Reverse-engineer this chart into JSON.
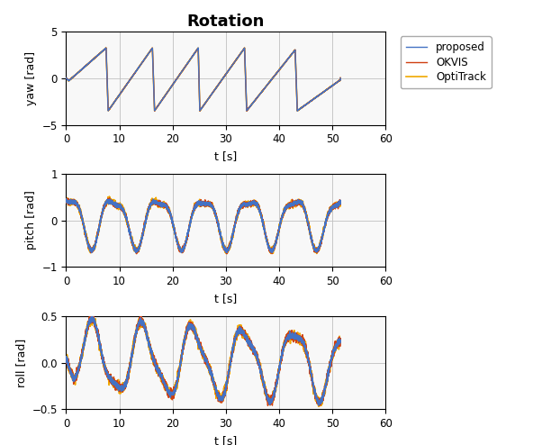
{
  "title": "Rotation",
  "title_fontsize": 13,
  "title_fontweight": "bold",
  "legend_labels": [
    "proposed",
    "OKVIS",
    "OptiTrack"
  ],
  "colors": {
    "proposed": "#4472c4",
    "okvis": "#d04010",
    "optitrack": "#f0a800"
  },
  "line_widths": {
    "proposed": 1.0,
    "okvis": 1.0,
    "optitrack": 1.2
  },
  "xlabel": "t [s]",
  "xlim": [
    0,
    60
  ],
  "xticks": [
    0,
    10,
    20,
    30,
    40,
    50,
    60
  ],
  "yaw_ylim": [
    -5,
    5
  ],
  "yaw_yticks": [
    -5,
    0,
    5
  ],
  "yaw_ylabel": "yaw [rad]",
  "pitch_ylim": [
    -1,
    1
  ],
  "pitch_yticks": [
    -1,
    0,
    1
  ],
  "pitch_ylabel": "pitch [rad]",
  "roll_ylim": [
    -0.5,
    0.5
  ],
  "roll_yticks": [
    -0.5,
    0,
    0.5
  ],
  "roll_ylabel": "roll [rad]",
  "grid_color": "#c0c0c0",
  "grid_linewidth": 0.6,
  "bg_color": "#f8f8f8"
}
